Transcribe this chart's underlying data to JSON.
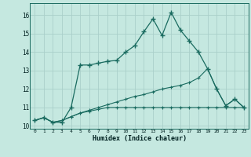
{
  "xlabel": "Humidex (Indice chaleur)",
  "background_color": "#c5e8e0",
  "grid_color": "#aacfca",
  "line_color": "#1a6b60",
  "xlim": [
    -0.5,
    23.5
  ],
  "ylim": [
    9.85,
    16.65
  ],
  "yticks": [
    10,
    11,
    12,
    13,
    14,
    15,
    16
  ],
  "xticks": [
    0,
    1,
    2,
    3,
    4,
    5,
    6,
    7,
    8,
    9,
    10,
    11,
    12,
    13,
    14,
    15,
    16,
    17,
    18,
    19,
    20,
    21,
    22,
    23
  ],
  "s1_x": [
    0,
    1,
    2,
    3,
    4,
    5,
    6,
    7,
    8,
    9,
    10,
    11,
    12,
    13,
    14,
    15,
    16,
    17,
    18,
    19,
    20,
    21,
    22,
    23
  ],
  "s1_y": [
    10.3,
    10.45,
    10.2,
    10.2,
    11.0,
    13.3,
    13.3,
    13.4,
    13.5,
    13.55,
    14.0,
    14.35,
    15.1,
    15.8,
    14.9,
    16.15,
    15.2,
    14.6,
    14.0,
    13.1,
    12.0,
    11.1,
    11.45,
    11.0
  ],
  "s2_x": [
    0,
    1,
    2,
    3,
    4,
    5,
    6,
    7,
    8,
    9,
    10,
    11,
    12,
    13,
    14,
    15,
    16,
    17,
    18,
    19,
    20,
    21,
    22,
    23
  ],
  "s2_y": [
    10.3,
    10.45,
    10.2,
    10.3,
    10.5,
    10.7,
    10.85,
    11.0,
    11.15,
    11.3,
    11.45,
    11.6,
    11.7,
    11.85,
    12.0,
    12.1,
    12.2,
    12.35,
    12.6,
    13.1,
    12.0,
    11.1,
    11.45,
    11.0
  ],
  "s3_x": [
    0,
    1,
    2,
    3,
    4,
    5,
    6,
    7,
    8,
    9,
    10,
    11,
    12,
    13,
    14,
    15,
    16,
    17,
    18,
    19,
    20,
    21,
    22,
    23
  ],
  "s3_y": [
    10.3,
    10.45,
    10.2,
    10.3,
    10.5,
    10.7,
    10.8,
    10.9,
    11.0,
    11.0,
    11.0,
    11.0,
    11.0,
    11.0,
    11.0,
    11.0,
    11.0,
    11.0,
    11.0,
    11.0,
    11.0,
    11.0,
    11.0,
    11.0
  ]
}
